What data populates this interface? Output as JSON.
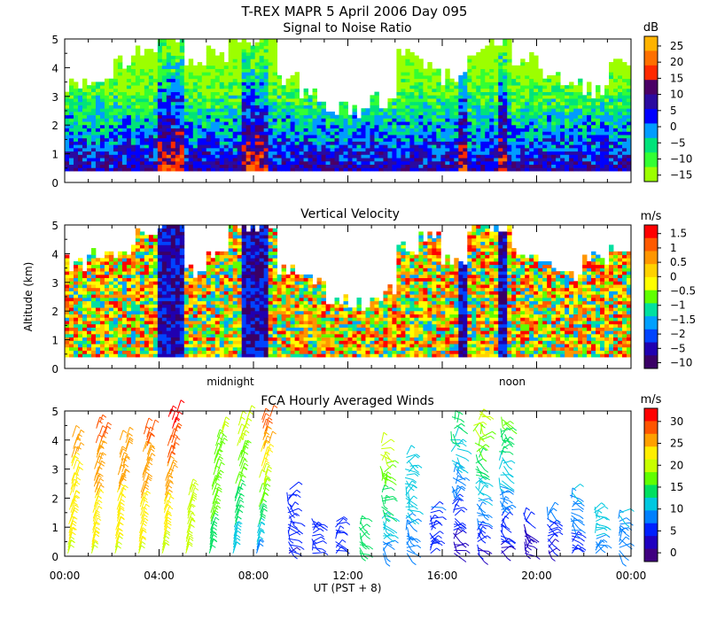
{
  "figure": {
    "title": "T-REX  MAPR  5 April 2006 Day 095",
    "ylabel": "Altitude (km)",
    "xlabel": "UT  (PST + 8)",
    "xticks": [
      "00:00",
      "04:00",
      "08:00",
      "12:00",
      "16:00",
      "20:00",
      "00:00"
    ],
    "local_time_labels": [
      "midnight",
      "noon"
    ]
  },
  "chart_data": [
    {
      "type": "heatmap",
      "title": "Signal to Noise Ratio",
      "colorbar_unit": "dB",
      "colorbar_ticks": [
        "25",
        "20",
        "15",
        "10",
        "5",
        "0",
        "−5",
        "−10",
        "−15"
      ],
      "colorbar_colors": [
        "#ffb300",
        "#ff7000",
        "#ff2a00",
        "#4a0066",
        "#2a0aa0",
        "#0000ff",
        "#009cff",
        "#00e37a",
        "#33ff33",
        "#9cff00"
      ],
      "x_range_hours": [
        0,
        24
      ],
      "ylim": [
        0,
        5
      ],
      "yticks": [
        "0",
        "1",
        "2",
        "3",
        "4",
        "5"
      ],
      "data_top_km": [
        3.4,
        3.6,
        4.2,
        4.6,
        5.0,
        4.0,
        4.4,
        5.0,
        5.0,
        3.6,
        3.0,
        2.6,
        2.4,
        2.8,
        4.4,
        4.0,
        3.6,
        4.6,
        5.0,
        4.2,
        3.8,
        3.4,
        3.2,
        4.0
      ]
    },
    {
      "type": "heatmap",
      "title": "Vertical Velocity",
      "colorbar_unit": "m/s",
      "colorbar_ticks": [
        "1.5",
        "1",
        "0.5",
        "0",
        "−0.5",
        "−1",
        "−1.5",
        "−2",
        "−5",
        "−10"
      ],
      "colorbar_colors": [
        "#ff0000",
        "#ff5a00",
        "#ff9600",
        "#ffd200",
        "#ffff00",
        "#60ff00",
        "#00e0a0",
        "#00a0ff",
        "#0044ff",
        "#2000b0",
        "#3a0066"
      ],
      "x_range_hours": [
        0,
        24
      ],
      "ylim": [
        0,
        5
      ],
      "yticks": [
        "0",
        "1",
        "2",
        "3",
        "4",
        "5"
      ],
      "data_top_km": [
        3.6,
        3.8,
        4.0,
        4.6,
        5.0,
        3.4,
        4.0,
        5.0,
        5.0,
        3.4,
        3.0,
        2.4,
        2.2,
        2.6,
        4.2,
        4.6,
        3.8,
        5.0,
        5.0,
        4.0,
        3.4,
        3.2,
        3.8,
        4.2
      ]
    },
    {
      "type": "scatter",
      "title": "FCA Hourly Averaged Winds",
      "colorbar_unit": "m/s",
      "colorbar_ticks": [
        "30",
        "25",
        "20",
        "15",
        "10",
        "5",
        "0"
      ],
      "colorbar_colors": [
        "#ff0000",
        "#ff5500",
        "#ffa000",
        "#ffee00",
        "#c8ff00",
        "#60ff00",
        "#00e060",
        "#00c8e0",
        "#0080ff",
        "#0020ff",
        "#2000c0",
        "#400080"
      ],
      "x_range_hours": [
        0,
        24
      ],
      "ylim": [
        0,
        5
      ],
      "yticks": [
        "0",
        "1",
        "2",
        "3",
        "4",
        "5"
      ],
      "xticks": [
        "00:00",
        "04:00",
        "08:00",
        "12:00",
        "16:00",
        "20:00",
        "00:00"
      ],
      "profiles": [
        {
          "hour": 0.5,
          "top_km": 4.2,
          "speed_low": 20,
          "speed_high": 24
        },
        {
          "hour": 1.5,
          "top_km": 4.6,
          "speed_low": 20,
          "speed_high": 27
        },
        {
          "hour": 2.5,
          "top_km": 4.2,
          "speed_low": 20,
          "speed_high": 26
        },
        {
          "hour": 3.5,
          "top_km": 4.4,
          "speed_low": 20,
          "speed_high": 27
        },
        {
          "hour": 4.5,
          "top_km": 5.0,
          "speed_low": 19,
          "speed_high": 30
        },
        {
          "hour": 5.5,
          "top_km": 2.4,
          "speed_low": 18,
          "speed_high": 20
        },
        {
          "hour": 6.5,
          "top_km": 4.4,
          "speed_low": 14,
          "speed_high": 18
        },
        {
          "hour": 7.5,
          "top_km": 4.8,
          "speed_low": 10,
          "speed_high": 20
        },
        {
          "hour": 8.5,
          "top_km": 4.8,
          "speed_low": 8,
          "speed_high": 28
        },
        {
          "hour": 9.5,
          "top_km": 2.4,
          "speed_low": 4,
          "speed_high": 6
        },
        {
          "hour": 10.5,
          "top_km": 1.4,
          "speed_low": 5,
          "speed_high": 6
        },
        {
          "hour": 11.5,
          "top_km": 1.2,
          "speed_low": 4,
          "speed_high": 6
        },
        {
          "hour": 12.5,
          "top_km": 1.4,
          "speed_low": 14,
          "speed_high": 15
        },
        {
          "hour": 13.5,
          "top_km": 4.0,
          "speed_low": 8,
          "speed_high": 20
        },
        {
          "hour": 14.5,
          "top_km": 3.6,
          "speed_low": 8,
          "speed_high": 12
        },
        {
          "hour": 15.5,
          "top_km": 1.8,
          "speed_low": 4,
          "speed_high": 7
        },
        {
          "hour": 16.5,
          "top_km": 4.8,
          "speed_low": 2,
          "speed_high": 14
        },
        {
          "hour": 17.5,
          "top_km": 5.0,
          "speed_low": 3,
          "speed_high": 20
        },
        {
          "hour": 18.5,
          "top_km": 4.8,
          "speed_low": 3,
          "speed_high": 16
        },
        {
          "hour": 19.5,
          "top_km": 1.6,
          "speed_low": 2,
          "speed_high": 5
        },
        {
          "hour": 20.5,
          "top_km": 1.8,
          "speed_low": 3,
          "speed_high": 8
        },
        {
          "hour": 21.5,
          "top_km": 2.4,
          "speed_low": 5,
          "speed_high": 10
        },
        {
          "hour": 22.5,
          "top_km": 1.8,
          "speed_low": 8,
          "speed_high": 12
        },
        {
          "hour": 23.5,
          "top_km": 1.6,
          "speed_low": 7,
          "speed_high": 10
        }
      ]
    }
  ]
}
